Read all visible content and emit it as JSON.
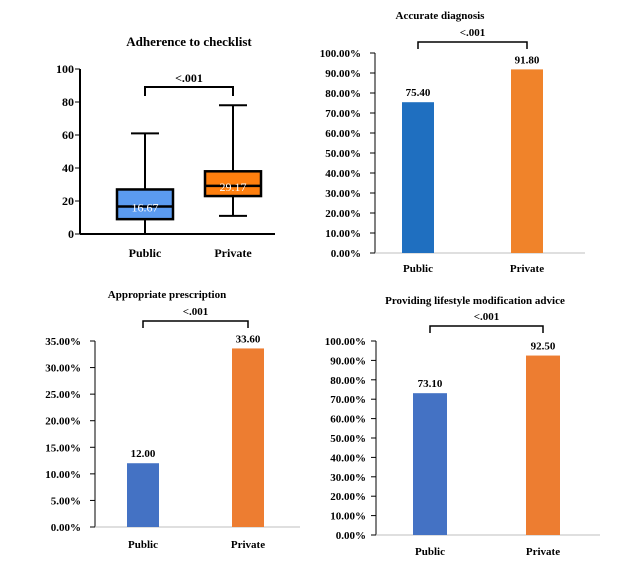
{
  "chart_data": [
    {
      "type": "box",
      "title": "Adherence to checklist",
      "categories": [
        "Public",
        "Private"
      ],
      "ylim": [
        0,
        100
      ],
      "yticks": [
        "0",
        "20",
        "40",
        "60",
        "80",
        "100"
      ],
      "boxes": [
        {
          "category": "Public",
          "min": 0,
          "q1": 9,
          "median": 16.67,
          "q3": 27,
          "max": 61,
          "label": "16.67",
          "color": "#5b9bf0"
        },
        {
          "category": "Private",
          "min": 11,
          "q1": 23,
          "median": 29.17,
          "q3": 38,
          "max": 78,
          "label": "29.17",
          "color": "#ff7f0e"
        }
      ],
      "significance": "<.001"
    },
    {
      "type": "bar",
      "title": "Accurate diagnosis",
      "categories": [
        "Public",
        "Private"
      ],
      "values": [
        75.4,
        91.8
      ],
      "value_labels": [
        "75.40",
        "91.80"
      ],
      "colors": [
        "#1f6fc0",
        "#f0832a"
      ],
      "ylim": [
        0,
        100
      ],
      "yticks": [
        "0.00%",
        "10.00%",
        "20.00%",
        "30.00%",
        "40.00%",
        "50.00%",
        "60.00%",
        "70.00%",
        "80.00%",
        "90.00%",
        "100.00%"
      ],
      "significance": "<.001"
    },
    {
      "type": "bar",
      "title": "Appropriate prescription",
      "categories": [
        "Public",
        "Private"
      ],
      "values": [
        12.0,
        33.6
      ],
      "value_labels": [
        "12.00",
        "33.60"
      ],
      "colors": [
        "#4472c4",
        "#ed7d31"
      ],
      "ylim": [
        0,
        35
      ],
      "yticks": [
        "0.00%",
        "5.00%",
        "10.00%",
        "15.00%",
        "20.00%",
        "25.00%",
        "30.00%",
        "35.00%"
      ],
      "significance": "<.001"
    },
    {
      "type": "bar",
      "title": "Providing lifestyle modification advice",
      "categories": [
        "Public",
        "Private"
      ],
      "values": [
        73.1,
        92.5
      ],
      "value_labels": [
        "73.10",
        "92.50"
      ],
      "colors": [
        "#4472c4",
        "#ed7d31"
      ],
      "ylim": [
        0,
        100
      ],
      "yticks": [
        "0.00%",
        "10.00%",
        "20.00%",
        "30.00%",
        "40.00%",
        "50.00%",
        "60.00%",
        "70.00%",
        "80.00%",
        "90.00%",
        "100.00%"
      ],
      "significance": "<.001"
    }
  ]
}
